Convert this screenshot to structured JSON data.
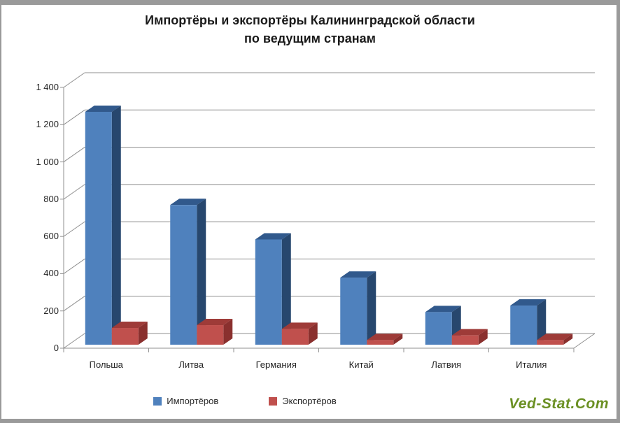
{
  "title": {
    "line1": "Импортёры и экспортёры Калининградской области",
    "line2": "по ведущим странам"
  },
  "watermark": "Ved-Stat.Com",
  "chart_data": {
    "type": "bar",
    "style": "3d-clustered-column",
    "title": "Импортёры и экспортёры Калининградской области по ведущим странам",
    "categories": [
      "Польша",
      "Литва",
      "Германия",
      "Китай",
      "Латвия",
      "Италия"
    ],
    "series": [
      {
        "name": "Импортёров",
        "values": [
          1250,
          750,
          565,
          360,
          175,
          210
        ],
        "color": "#4F81BD",
        "color_top": "#31598C",
        "color_side": "#27476E"
      },
      {
        "name": "Экспортёров",
        "values": [
          90,
          105,
          85,
          25,
          50,
          25
        ],
        "color": "#C0504D",
        "color_top": "#9E3B38",
        "color_side": "#8A302E"
      }
    ],
    "xlabel": "",
    "ylabel": "",
    "ylim": [
      0,
      1400
    ],
    "ytick_step": 200,
    "ytick_labels": [
      "0",
      "200",
      "400",
      "600",
      "800",
      "1 000",
      "1 200",
      "1 400"
    ],
    "grid": true,
    "legend_position": "bottom"
  },
  "colors": {
    "grid": "#8F8F8F",
    "frame": "#9A9A9A",
    "text": "#262626",
    "title_text": "#1A1A1A",
    "watermark_green": "#6B9023",
    "background": "#FFFFFF"
  }
}
